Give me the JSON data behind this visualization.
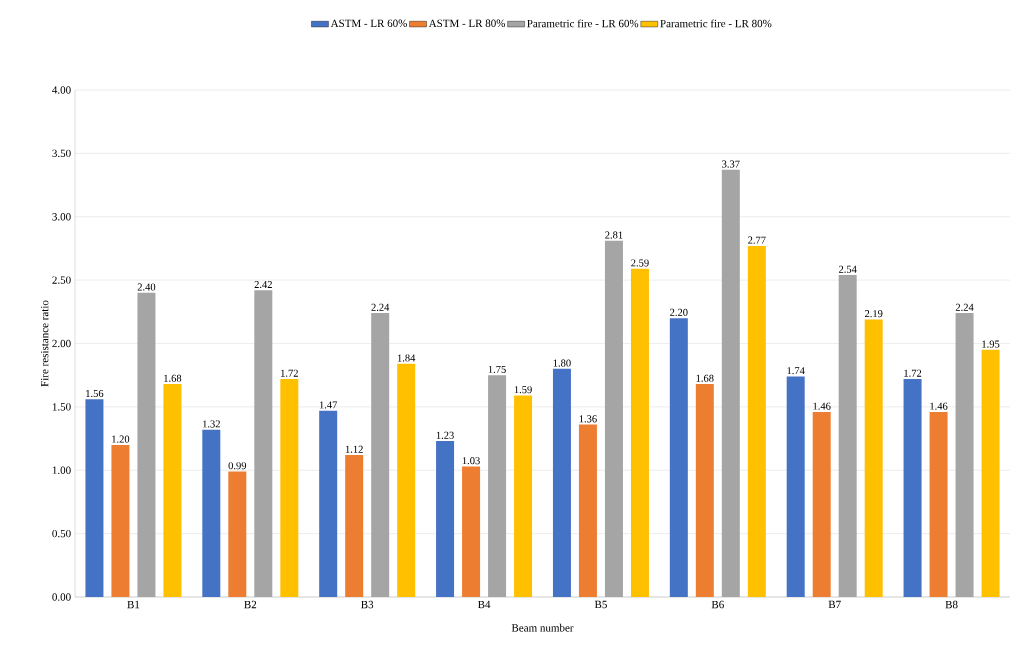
{
  "chart_data": {
    "type": "bar",
    "xlabel": "Beam number",
    "ylabel": "Fire resistance ratio",
    "categories": [
      "B1",
      "B2",
      "B3",
      "B4",
      "B5",
      "B6",
      "B7",
      "B8"
    ],
    "series": [
      {
        "name": "ASTM - LR 60%",
        "color": "#4472c4",
        "values": [
          1.56,
          1.32,
          1.47,
          1.23,
          1.8,
          2.2,
          1.74,
          1.72
        ],
        "value_labels": [
          "1.56",
          "1.32",
          "1.47",
          "1.23",
          "1.80",
          "2.20",
          "1.74",
          "1.72"
        ]
      },
      {
        "name": "ASTM - LR 80%",
        "color": "#ed7d31",
        "values": [
          1.2,
          0.99,
          1.12,
          1.03,
          1.36,
          1.68,
          1.46,
          1.46
        ],
        "value_labels": [
          "1.20",
          "0.99",
          "1.12",
          "1.03",
          "1.36",
          "1.68",
          "1.46",
          "1.46"
        ]
      },
      {
        "name": "Parametric fire - LR 60%",
        "color": "#a5a5a5",
        "values": [
          2.4,
          2.42,
          2.24,
          1.75,
          2.81,
          3.37,
          2.54,
          2.24
        ],
        "value_labels": [
          "2.40",
          "2.42",
          "2.24",
          "1.75",
          "2.81",
          "3.37",
          "2.54",
          "2.24"
        ]
      },
      {
        "name": "Parametric fire - LR 80%",
        "color": "#ffc000",
        "values": [
          1.68,
          1.72,
          1.84,
          1.59,
          2.59,
          2.77,
          2.19,
          1.95
        ],
        "value_labels": [
          "1.68",
          "1.72",
          "1.84",
          "1.59",
          "2.59",
          "2.77",
          "2.19",
          "1.95"
        ]
      }
    ],
    "ylim": [
      0,
      4
    ],
    "yticks": [
      {
        "value": 0,
        "label": "0.00"
      },
      {
        "value": 0.5,
        "label": "0.50"
      },
      {
        "value": 1,
        "label": "1.00"
      },
      {
        "value": 1.5,
        "label": "1.50"
      },
      {
        "value": 2,
        "label": "2.00"
      },
      {
        "value": 2.5,
        "label": "2.50"
      },
      {
        "value": 3,
        "label": "3.00"
      },
      {
        "value": 3.5,
        "label": "3.50"
      },
      {
        "value": 4,
        "label": "4.00"
      }
    ],
    "grid": "y",
    "legend": "top"
  }
}
